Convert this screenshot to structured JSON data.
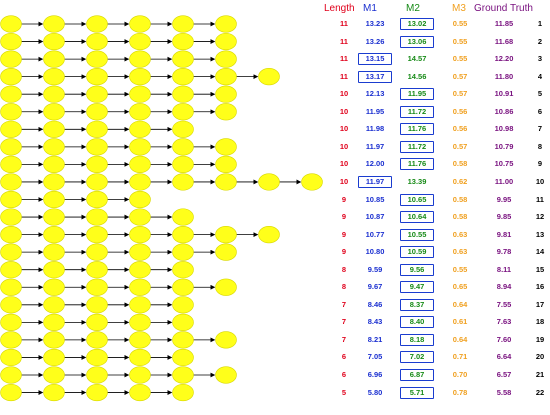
{
  "colors": {
    "node_fill": "#ffff1a",
    "node_stroke": "#d8d800",
    "edge": "#000000",
    "length": "#e0001b",
    "m1": "#1a2fd0",
    "m2": "#168a16",
    "m3": "#f0a020",
    "ground_truth": "#7a1380",
    "rank": "#000000",
    "box": "#1a3ccf"
  },
  "headers": {
    "length": "Length",
    "m1": "M1",
    "m2": "M2",
    "m3": "M3",
    "ground_truth": "Ground Truth"
  },
  "rows": [
    {
      "nodes": 6,
      "length": "11",
      "m1": "13.23",
      "m2": "13.02",
      "m3": "0.55",
      "gt": "11.85",
      "rank": "1",
      "boxed": "m2"
    },
    {
      "nodes": 6,
      "length": "11",
      "m1": "13.26",
      "m2": "13.06",
      "m3": "0.55",
      "gt": "11.68",
      "rank": "2",
      "boxed": "m2"
    },
    {
      "nodes": 6,
      "length": "11",
      "m1": "13.15",
      "m2": "14.57",
      "m3": "0.55",
      "gt": "12.20",
      "rank": "3",
      "boxed": "m1"
    },
    {
      "nodes": 7,
      "length": "11",
      "m1": "13.17",
      "m2": "14.56",
      "m3": "0.57",
      "gt": "11.80",
      "rank": "4",
      "boxed": "m1"
    },
    {
      "nodes": 6,
      "length": "10",
      "m1": "12.13",
      "m2": "11.95",
      "m3": "0.57",
      "gt": "10.91",
      "rank": "5",
      "boxed": "m2"
    },
    {
      "nodes": 6,
      "length": "10",
      "m1": "11.95",
      "m2": "11.72",
      "m3": "0.56",
      "gt": "10.86",
      "rank": "6",
      "boxed": "m2"
    },
    {
      "nodes": 5,
      "length": "10",
      "m1": "11.98",
      "m2": "11.76",
      "m3": "0.56",
      "gt": "10.98",
      "rank": "7",
      "boxed": "m2"
    },
    {
      "nodes": 6,
      "length": "10",
      "m1": "11.97",
      "m2": "11.72",
      "m3": "0.57",
      "gt": "10.79",
      "rank": "8",
      "boxed": "m2"
    },
    {
      "nodes": 6,
      "length": "10",
      "m1": "12.00",
      "m2": "11.76",
      "m3": "0.58",
      "gt": "10.75",
      "rank": "9",
      "boxed": "m2"
    },
    {
      "nodes": 8,
      "length": "10",
      "m1": "11.97",
      "m2": "13.39",
      "m3": "0.62",
      "gt": "11.00",
      "rank": "10",
      "boxed": "m1"
    },
    {
      "nodes": 4,
      "length": "9",
      "m1": "10.85",
      "m2": "10.65",
      "m3": "0.58",
      "gt": "9.95",
      "rank": "11",
      "boxed": "m2"
    },
    {
      "nodes": 5,
      "length": "9",
      "m1": "10.87",
      "m2": "10.64",
      "m3": "0.58",
      "gt": "9.85",
      "rank": "12",
      "boxed": "m2"
    },
    {
      "nodes": 7,
      "length": "9",
      "m1": "10.77",
      "m2": "10.55",
      "m3": "0.63",
      "gt": "9.81",
      "rank": "13",
      "boxed": "m2"
    },
    {
      "nodes": 6,
      "length": "9",
      "m1": "10.80",
      "m2": "10.59",
      "m3": "0.63",
      "gt": "9.78",
      "rank": "14",
      "boxed": "m2"
    },
    {
      "nodes": 5,
      "length": "8",
      "m1": "9.59",
      "m2": "9.56",
      "m3": "0.55",
      "gt": "8.11",
      "rank": "15",
      "boxed": "m2"
    },
    {
      "nodes": 6,
      "length": "8",
      "m1": "9.67",
      "m2": "9.47",
      "m3": "0.65",
      "gt": "8.94",
      "rank": "16",
      "boxed": "m2"
    },
    {
      "nodes": 5,
      "length": "7",
      "m1": "8.46",
      "m2": "8.37",
      "m3": "0.64",
      "gt": "7.55",
      "rank": "17",
      "boxed": "m2"
    },
    {
      "nodes": 5,
      "length": "7",
      "m1": "8.43",
      "m2": "8.40",
      "m3": "0.61",
      "gt": "7.63",
      "rank": "18",
      "boxed": "m2"
    },
    {
      "nodes": 6,
      "length": "7",
      "m1": "8.21",
      "m2": "8.18",
      "m3": "0.64",
      "gt": "7.60",
      "rank": "19",
      "boxed": "m2"
    },
    {
      "nodes": 5,
      "length": "6",
      "m1": "7.05",
      "m2": "7.02",
      "m3": "0.71",
      "gt": "6.64",
      "rank": "20",
      "boxed": "m2"
    },
    {
      "nodes": 6,
      "length": "6",
      "m1": "6.96",
      "m2": "6.87",
      "m3": "0.70",
      "gt": "6.57",
      "rank": "21",
      "boxed": "m2"
    },
    {
      "nodes": 5,
      "length": "5",
      "m1": "5.80",
      "m2": "5.71",
      "m3": "0.78",
      "gt": "5.58",
      "rank": "22",
      "boxed": "m2"
    }
  ]
}
